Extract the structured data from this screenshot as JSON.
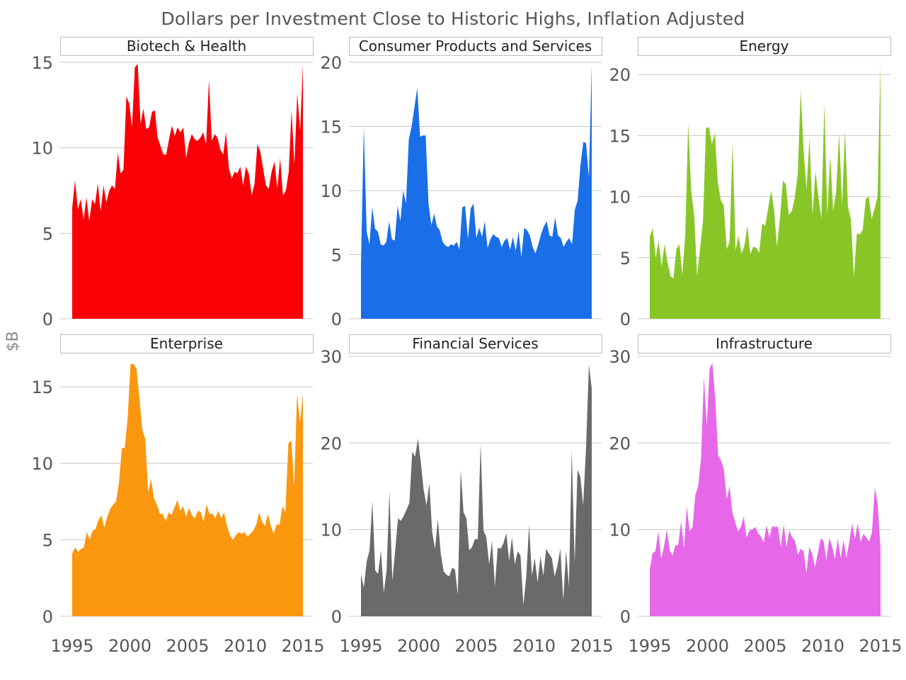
{
  "chart_data": {
    "type": "area",
    "title": "Dollars per Investment Close to Historic Highs, Inflation Adjusted",
    "ylabel": "$B",
    "xlabel": "",
    "grid": true,
    "x_start": 1995,
    "x_end": 2015,
    "x_ticks": [
      1995,
      2000,
      2005,
      2010,
      2015
    ],
    "panels": [
      {
        "name": "Biotech & Health",
        "color": "#f90007",
        "ylim": [
          0,
          15
        ],
        "y_ticks": [
          0,
          5,
          10,
          15
        ],
        "values": [
          6.5,
          8.1,
          6.4,
          7.0,
          5.8,
          7.1,
          5.7,
          7.0,
          6.7,
          7.9,
          6.3,
          7.8,
          6.8,
          7.5,
          7.8,
          7.6,
          9.7,
          8.5,
          8.7,
          13.0,
          12.6,
          11.2,
          14.7,
          14.9,
          11.4,
          12.3,
          11.1,
          11.2,
          12.1,
          12.2,
          10.6,
          10.1,
          9.6,
          9.6,
          10.5,
          11.3,
          10.7,
          11.2,
          10.9,
          11.2,
          9.4,
          10.3,
          10.8,
          10.5,
          10.4,
          10.6,
          10.9,
          10.2,
          14.0,
          10.4,
          10.8,
          10.6,
          9.9,
          9.6,
          10.9,
          8.8,
          8.2,
          8.6,
          8.5,
          8.9,
          7.8,
          8.9,
          8.5,
          7.2,
          7.9,
          10.2,
          9.8,
          8.8,
          7.8,
          7.6,
          8.6,
          9.2,
          7.6,
          9.4,
          7.2,
          7.5,
          8.6,
          12.2,
          9.0,
          13.2,
          11.0,
          14.9
        ]
      },
      {
        "name": "Consumer Products and Services",
        "color": "#1a6ee8",
        "ylim": [
          0,
          20
        ],
        "y_ticks": [
          0,
          5,
          10,
          15,
          20
        ],
        "values": [
          4.3,
          15.0,
          6.8,
          5.8,
          8.7,
          7.0,
          6.8,
          5.8,
          5.7,
          6.0,
          7.6,
          6.2,
          6.1,
          8.8,
          7.6,
          10.0,
          9.0,
          14.0,
          15.0,
          16.5,
          18.0,
          14.2,
          14.3,
          14.3,
          9.0,
          7.3,
          8.2,
          7.2,
          6.9,
          6.0,
          5.7,
          5.6,
          5.8,
          5.7,
          6.0,
          5.4,
          8.7,
          8.8,
          6.2,
          8.6,
          9.0,
          6.3,
          7.1,
          6.4,
          7.6,
          5.5,
          6.2,
          6.6,
          6.4,
          6.3,
          5.6,
          6.1,
          6.3,
          5.4,
          6.4,
          5.3,
          6.8,
          4.8,
          7.1,
          6.9,
          6.5,
          5.6,
          5.1,
          5.8,
          6.6,
          7.2,
          7.6,
          6.5,
          6.4,
          7.9,
          6.5,
          6.3,
          5.6,
          6.0,
          6.3,
          5.8,
          8.5,
          9.2,
          12.0,
          13.8,
          13.7,
          11.0,
          19.8
        ]
      },
      {
        "name": "Energy",
        "color": "#88c628",
        "ylim": [
          0,
          21
        ],
        "y_ticks": [
          0,
          5,
          10,
          15,
          20
        ],
        "values": [
          6.7,
          7.4,
          5.0,
          6.4,
          4.3,
          6.1,
          4.6,
          3.5,
          3.3,
          5.7,
          6.1,
          3.6,
          7.0,
          16.0,
          10.5,
          8.5,
          3.5,
          5.8,
          8.0,
          15.6,
          15.7,
          14.3,
          15.2,
          11.2,
          9.7,
          9.3,
          5.7,
          6.3,
          14.5,
          5.6,
          6.8,
          5.3,
          6.0,
          7.6,
          5.3,
          5.9,
          5.8,
          5.4,
          7.8,
          7.6,
          9.0,
          10.5,
          9.0,
          5.9,
          8.2,
          11.3,
          11.0,
          8.5,
          8.8,
          9.9,
          11.8,
          18.7,
          13.8,
          10.6,
          14.8,
          8.5,
          12.1,
          10.0,
          8.2,
          17.6,
          8.5,
          13.4,
          8.8,
          10.4,
          15.2,
          9.3,
          15.4,
          9.2,
          8.1,
          3.4,
          7.0,
          6.9,
          7.3,
          9.8,
          10.0,
          8.2,
          9.0,
          10.0,
          21.0
        ]
      },
      {
        "name": "Enterprise",
        "color": "#fb960f",
        "ylim": [
          0,
          17
        ],
        "y_ticks": [
          0,
          5,
          10,
          15
        ],
        "values": [
          4.1,
          4.5,
          4.2,
          4.4,
          4.5,
          5.5,
          5.0,
          5.6,
          5.7,
          6.3,
          6.6,
          5.8,
          6.5,
          7.0,
          7.3,
          7.5,
          8.7,
          11.0,
          11.0,
          13.0,
          16.5,
          16.5,
          16.2,
          14.3,
          12.2,
          11.6,
          8.1,
          9.0,
          7.7,
          7.3,
          6.7,
          6.7,
          6.2,
          6.8,
          6.6,
          7.1,
          7.6,
          6.9,
          7.2,
          6.5,
          7.1,
          6.6,
          6.4,
          6.9,
          6.8,
          6.2,
          7.3,
          6.7,
          6.7,
          6.4,
          6.9,
          6.4,
          6.8,
          5.9,
          5.3,
          5.0,
          5.3,
          5.5,
          5.4,
          5.5,
          5.2,
          5.4,
          5.6,
          6.0,
          6.8,
          6.2,
          5.9,
          6.7,
          5.9,
          5.4,
          6.0,
          6.0,
          7.2,
          6.8,
          11.3,
          11.5,
          8.5,
          14.5,
          12.7,
          14.5
        ]
      },
      {
        "name": "Financial Services",
        "color": "#6a6a6a",
        "ylim": [
          0,
          30
        ],
        "y_ticks": [
          0,
          10,
          20,
          30
        ],
        "values": [
          4.9,
          3.3,
          6.3,
          7.6,
          13.3,
          5.3,
          4.9,
          7.6,
          2.7,
          5.3,
          14.4,
          4.1,
          7.6,
          11.3,
          11.0,
          11.6,
          12.3,
          13.1,
          19.0,
          18.4,
          20.5,
          17.8,
          14.6,
          12.8,
          15.3,
          9.7,
          7.8,
          11.2,
          7.2,
          5.2,
          4.8,
          4.6,
          5.6,
          5.4,
          2.5,
          16.9,
          12.0,
          11.3,
          7.6,
          8.0,
          8.9,
          8.9,
          19.9,
          9.9,
          9.1,
          6.0,
          8.7,
          3.5,
          7.9,
          7.8,
          8.4,
          9.6,
          6.4,
          9.1,
          6.0,
          7.5,
          7.0,
          1.3,
          4.5,
          10.5,
          4.7,
          6.7,
          3.9,
          6.9,
          4.7,
          7.8,
          7.2,
          6.7,
          4.6,
          5.9,
          7.8,
          1.8,
          7.6,
          3.4,
          19.2,
          6.1,
          16.9,
          16.1,
          12.8,
          19.5,
          29.0,
          26.3
        ]
      },
      {
        "name": "Infrastructure",
        "color": "#e667e8",
        "ylim": [
          0,
          30
        ],
        "y_ticks": [
          0,
          10,
          20,
          30
        ],
        "values": [
          5.4,
          7.3,
          7.5,
          9.8,
          6.6,
          8.0,
          10.0,
          7.6,
          7.0,
          8.2,
          8.2,
          11.0,
          7.8,
          12.7,
          9.8,
          10.3,
          14.0,
          15.0,
          18.2,
          27.6,
          22.0,
          28.6,
          29.2,
          25.0,
          18.5,
          18.0,
          17.0,
          13.5,
          15.0,
          12.0,
          10.8,
          9.8,
          10.3,
          11.5,
          9.1,
          9.9,
          10.0,
          10.3,
          9.6,
          9.2,
          8.5,
          10.5,
          9.1,
          10.4,
          10.3,
          10.3,
          8.0,
          10.6,
          8.0,
          9.9,
          9.1,
          8.7,
          7.1,
          7.8,
          7.5,
          5.0,
          8.0,
          7.2,
          5.7,
          7.3,
          9.0,
          8.7,
          6.5,
          9.0,
          8.1,
          6.6,
          9.0,
          6.7,
          8.8,
          6.7,
          8.5,
          10.7,
          8.9,
          10.7,
          8.6,
          9.5,
          9.1,
          8.6,
          9.7,
          14.8,
          13.0,
          7.8
        ]
      }
    ]
  }
}
